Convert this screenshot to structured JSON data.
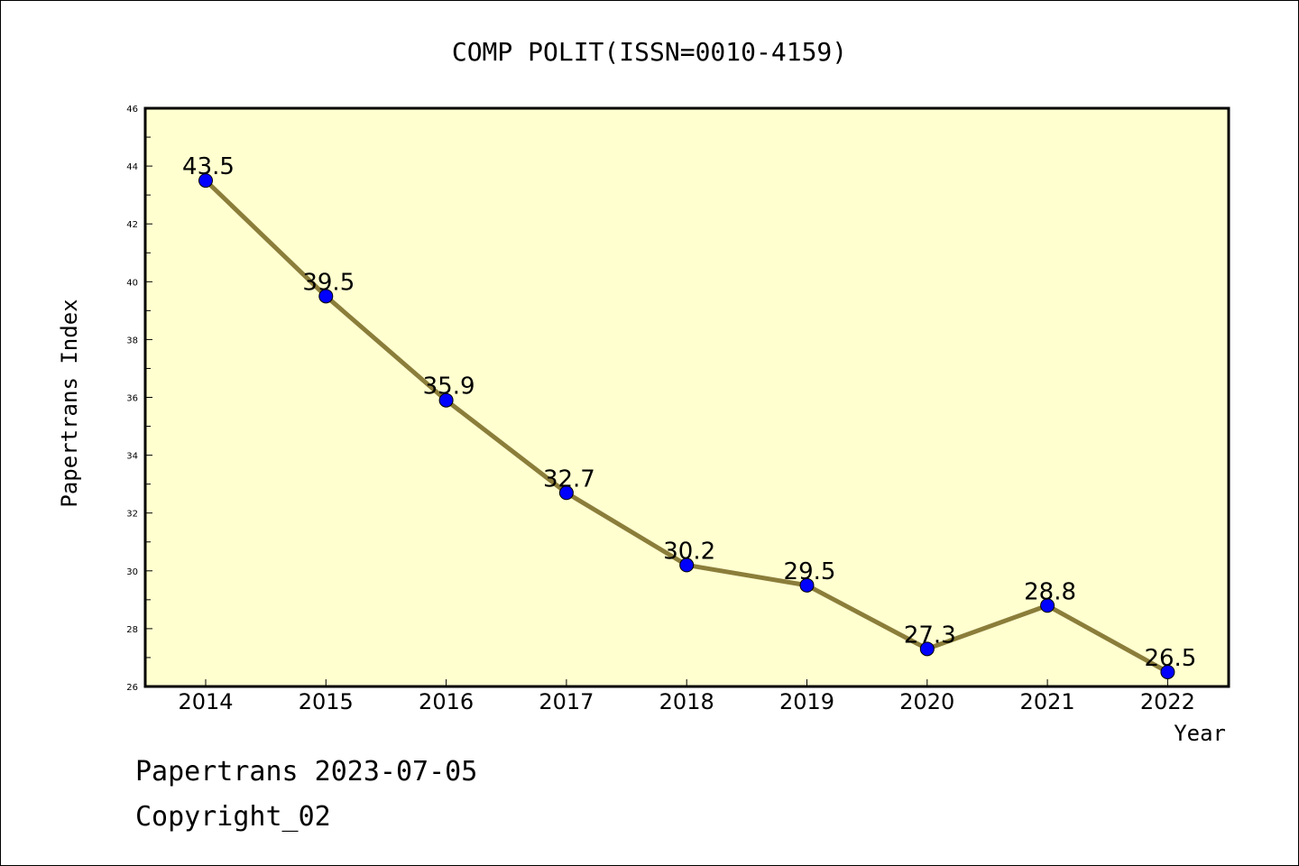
{
  "chart_data": {
    "type": "line",
    "title": "COMP POLIT(ISSN=0010-4159)",
    "xlabel": "Year",
    "ylabel": "Papertrans Index",
    "categories": [
      "2014",
      "2015",
      "2016",
      "2017",
      "2018",
      "2019",
      "2020",
      "2021",
      "2022"
    ],
    "series": [
      {
        "values": [
          43.5,
          39.5,
          35.9,
          32.7,
          30.2,
          29.5,
          27.3,
          28.8,
          26.5
        ]
      }
    ],
    "data_labels": [
      "43.5",
      "39.5",
      "35.9",
      "32.7",
      "30.2",
      "29.5",
      "27.3",
      "28.8",
      "26.5"
    ],
    "ylim": [
      26,
      46
    ],
    "yticks": [
      26,
      28,
      30,
      32,
      34,
      36,
      38,
      40,
      42,
      44,
      46
    ],
    "grid": false,
    "colors": {
      "plot_background": "#ffffd0",
      "line": "#8b7d3a",
      "marker": "#0000ff"
    }
  },
  "footer": {
    "line1": "Papertrans 2023-07-05",
    "line2": "Copyright_02"
  }
}
